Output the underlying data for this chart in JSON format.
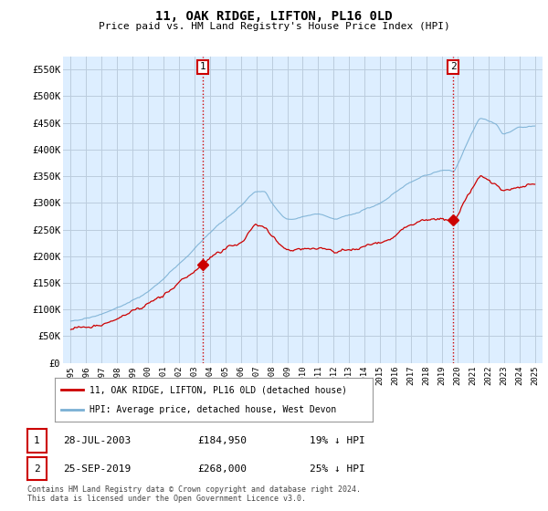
{
  "title": "11, OAK RIDGE, LIFTON, PL16 0LD",
  "subtitle": "Price paid vs. HM Land Registry's House Price Index (HPI)",
  "ylabel_ticks": [
    "£0",
    "£50K",
    "£100K",
    "£150K",
    "£200K",
    "£250K",
    "£300K",
    "£350K",
    "£400K",
    "£450K",
    "£500K",
    "£550K"
  ],
  "ytick_values": [
    0,
    50000,
    100000,
    150000,
    200000,
    250000,
    300000,
    350000,
    400000,
    450000,
    500000,
    550000
  ],
  "ylim": [
    0,
    575000
  ],
  "xlim_start": 1994.5,
  "xlim_end": 2025.5,
  "xtick_years": [
    1995,
    1996,
    1997,
    1998,
    1999,
    2000,
    2001,
    2002,
    2003,
    2004,
    2005,
    2006,
    2007,
    2008,
    2009,
    2010,
    2011,
    2012,
    2013,
    2014,
    2015,
    2016,
    2017,
    2018,
    2019,
    2020,
    2021,
    2022,
    2023,
    2024,
    2025
  ],
  "red_line_color": "#cc0000",
  "blue_line_color": "#7ab0d4",
  "vline_color": "#cc0000",
  "chart_bg": "#ddeeff",
  "marker1_x": 2003.55,
  "marker1_y": 184950,
  "marker1_label": "1",
  "marker2_x": 2019.73,
  "marker2_y": 268000,
  "marker2_label": "2",
  "legend_line1": "11, OAK RIDGE, LIFTON, PL16 0LD (detached house)",
  "legend_line2": "HPI: Average price, detached house, West Devon",
  "table_row1": [
    "1",
    "28-JUL-2003",
    "£184,950",
    "19% ↓ HPI"
  ],
  "table_row2": [
    "2",
    "25-SEP-2019",
    "£268,000",
    "25% ↓ HPI"
  ],
  "footer": "Contains HM Land Registry data © Crown copyright and database right 2024.\nThis data is licensed under the Open Government Licence v3.0.",
  "bg_color": "#ffffff",
  "grid_color": "#bbccdd"
}
